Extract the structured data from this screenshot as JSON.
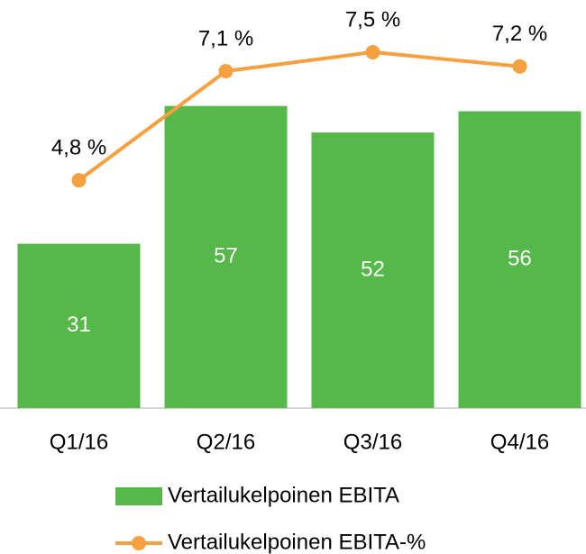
{
  "chart_data": {
    "type": "bar-line",
    "categories": [
      "Q1/16",
      "Q2/16",
      "Q3/16",
      "Q4/16"
    ],
    "series": [
      {
        "name": "Vertailukelpoinen EBITA",
        "type": "bar",
        "color": "#55b848",
        "values": [
          31,
          57,
          52,
          56
        ]
      },
      {
        "name": "Vertailukelpoinen EBITA-%",
        "type": "line",
        "axis": "y2",
        "color": "#f7a040",
        "values": [
          4.8,
          7.1,
          7.5,
          7.2
        ],
        "value_labels": [
          "4,8 %",
          "7,1 %",
          "7,5 %",
          "7,2 %"
        ]
      }
    ],
    "ylim": [
      0,
      77
    ],
    "y2lim": [
      0,
      8.6
    ]
  }
}
